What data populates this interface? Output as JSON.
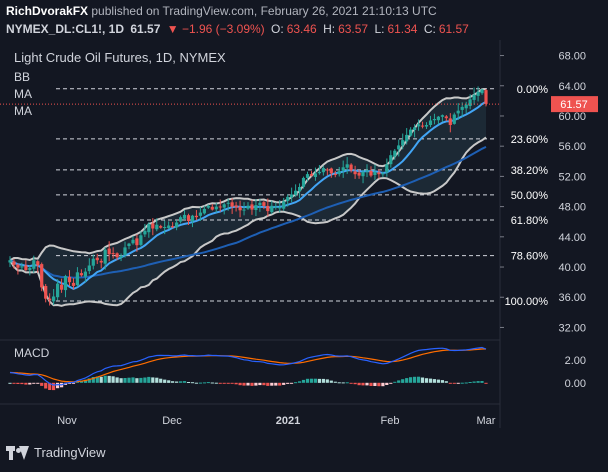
{
  "header": {
    "author": "RichDvorakFX",
    "published_text": "published on TradingView.com, February 26, 2021 21:10:13 UTC",
    "symbol": "NYMEX_DL:CL1!, 1D",
    "last": "61.57",
    "change": "▼ −1.96 (−3.09%)",
    "open_label": "O:",
    "open": "63.46",
    "high_label": "H:",
    "high": "63.57",
    "low_label": "L:",
    "low": "61.34",
    "close_label": "C:",
    "close": "61.57"
  },
  "legend": {
    "title": "Light Crude Oil Futures, 1D, NYMEX",
    "bb": "BB",
    "ma1": "MA",
    "ma2": "MA"
  },
  "price_badge": "61.57",
  "macd_label": "MACD",
  "footer": {
    "brand": "TradingView"
  },
  "colors": {
    "background": "#131722",
    "up_candle": "#26a69a",
    "down_candle": "#ef5350",
    "bb_band": "#c8c8c8",
    "ma_fast": "#42a5f5",
    "ma_slow": "#1e5fb4",
    "macd_line": "#2962ff",
    "signal_line": "#ff6d00",
    "price_badge": "#ef5350"
  },
  "chart_data": [
    {
      "type": "candlestick",
      "title": "Light Crude Oil Futures, 1D, NYMEX",
      "x_ticks": [
        "Nov",
        "Dec",
        "2021",
        "Feb",
        "Mar"
      ],
      "y_ticks": [
        "32.00",
        "36.00",
        "40.00",
        "44.00",
        "48.00",
        "52.00",
        "56.00",
        "60.00",
        "64.00",
        "68.00"
      ],
      "ylim": [
        31,
        69
      ],
      "grid": false,
      "close": [
        40.9,
        40.3,
        39.9,
        40.1,
        39.6,
        39.9,
        40.9,
        40.2,
        37.3,
        35.8,
        35.6,
        36.1,
        37.8,
        37.0,
        38.8,
        38.0,
        37.5,
        39.3,
        38.9,
        39.4,
        40.2,
        41.1,
        40.9,
        40.6,
        42.3,
        41.7,
        41.8,
        41.3,
        41.5,
        42.6,
        43.1,
        43.6,
        42.9,
        44.2,
        44.8,
        45.7,
        45.1,
        45.6,
        45.2,
        45.3,
        45.5,
        45.3,
        45.9,
        46.6,
        46.9,
        46.1,
        46.8,
        46.6,
        47.2,
        47.7,
        48.1,
        47.6,
        48.0,
        47.9,
        48.3,
        48.5,
        48.0,
        47.9,
        47.5,
        47.6,
        48.1,
        47.6,
        48.2,
        48.5,
        48.1,
        47.4,
        48.1,
        48.0,
        47.9,
        48.7,
        49.3,
        49.6,
        50.1,
        50.6,
        51.8,
        52.3,
        52.1,
        52.4,
        52.6,
        53.1,
        52.9,
        52.4,
        52.2,
        52.7,
        53.2,
        53.6,
        52.8,
        52.3,
        52.1,
        52.6,
        52.8,
        52.1,
        52.6,
        52.3,
        52.4,
        53.6,
        54.8,
        55.4,
        56.1,
        56.8,
        57.5,
        58.2,
        58.5,
        58.9,
        58.6,
        58.8,
        59.4,
        59.6,
        59.9,
        60.1,
        59.7,
        58.8,
        60.2,
        60.7,
        61.2,
        61.5,
        62.2,
        62.8,
        63.2,
        63.5,
        61.6
      ],
      "markers": {
        "low_date_index": 10,
        "low": 34.9,
        "high": 63.6
      },
      "fib_levels": [
        {
          "label": "0.00%",
          "value": 63.6
        },
        {
          "label": "23.60%",
          "value": 56.97
        },
        {
          "label": "38.20%",
          "value": 52.87
        },
        {
          "label": "50.00%",
          "value": 49.55
        },
        {
          "label": "61.80%",
          "value": 46.23
        },
        {
          "label": "78.60%",
          "value": 41.51
        },
        {
          "label": "100.00%",
          "value": 35.5
        }
      ],
      "last_price": 61.57
    },
    {
      "type": "line",
      "title": "MACD",
      "y_ticks": [
        "2.00",
        "0.00"
      ],
      "ylim": [
        -1.5,
        3.3
      ]
    }
  ]
}
